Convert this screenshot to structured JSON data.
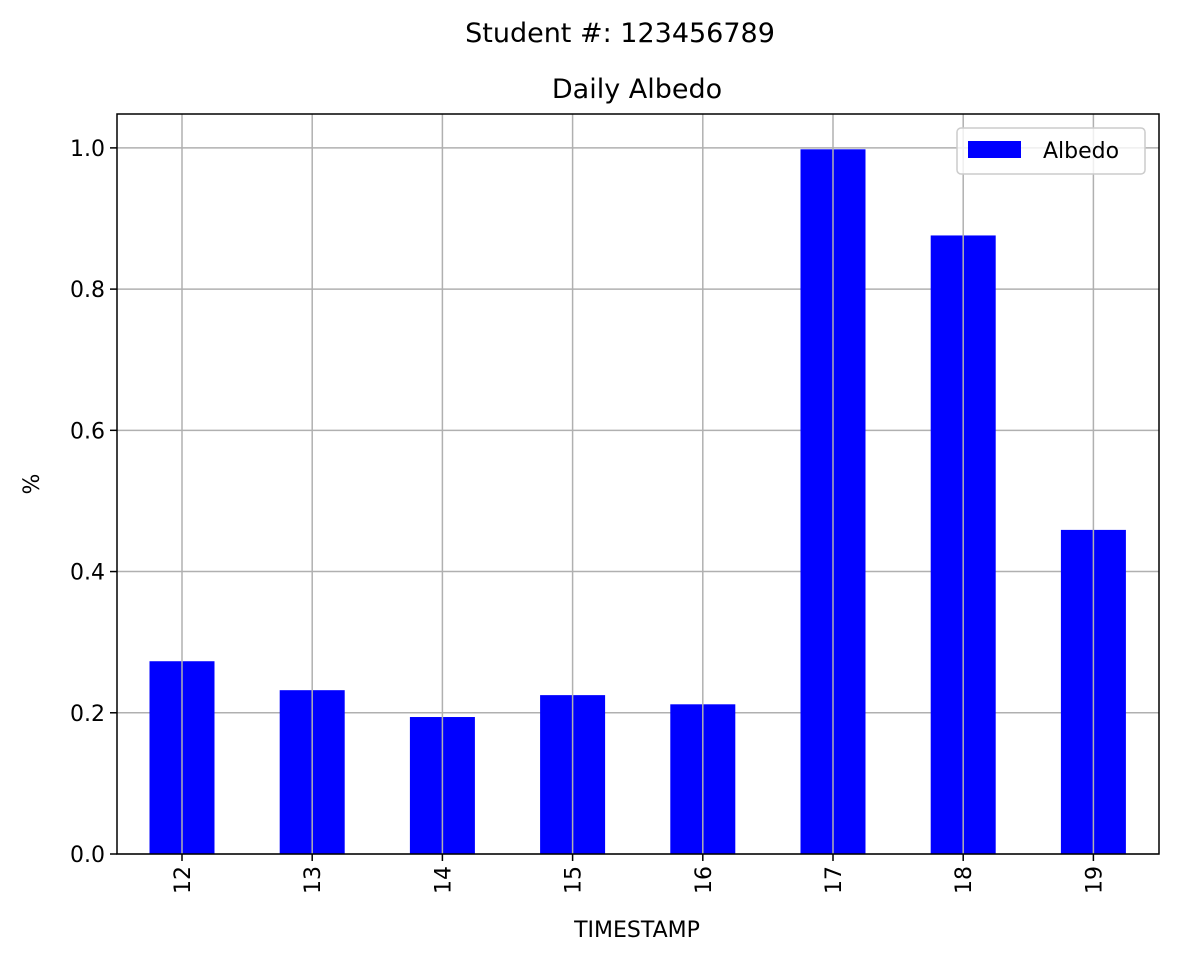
{
  "suptitle": "Student #: 123456789",
  "chart_data": {
    "type": "bar",
    "title": "Daily Albedo",
    "xlabel": "TIMESTAMP",
    "ylabel": "%",
    "categories": [
      "12",
      "13",
      "14",
      "15",
      "16",
      "17",
      "18",
      "19"
    ],
    "series": [
      {
        "name": "Albedo",
        "color": "#0000ff",
        "values": [
          0.273,
          0.232,
          0.194,
          0.225,
          0.212,
          0.998,
          0.876,
          0.459
        ]
      }
    ],
    "ylim": [
      0,
      1.048
    ],
    "yticks": [
      "0.0",
      "0.2",
      "0.4",
      "0.6",
      "0.8",
      "1.0"
    ],
    "ytick_values": [
      0,
      0.2,
      0.4,
      0.6,
      0.8,
      1.0
    ],
    "grid": true,
    "legend_position": "top-right",
    "xtick_rotation": "vertical"
  }
}
